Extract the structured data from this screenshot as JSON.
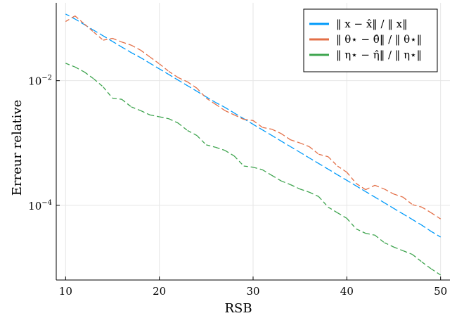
{
  "chart_data": {
    "type": "line",
    "title": "",
    "xlabel": "RSB",
    "ylabel": "Erreur relative",
    "xlim": [
      9,
      51
    ],
    "ylim_log10": [
      -5.2,
      -0.75
    ],
    "yscale": "log",
    "grid": true,
    "legend_position": "top-right",
    "x_ticks": [
      10,
      20,
      30,
      40,
      50
    ],
    "x_tick_labels": [
      "10",
      "20",
      "30",
      "40",
      "50"
    ],
    "y_ticks_log10": [
      -2,
      -4
    ],
    "y_tick_labels": [
      {
        "base": "10",
        "exp": "−2"
      },
      {
        "base": "10",
        "exp": "−4"
      }
    ],
    "x": [
      10,
      11,
      12,
      13,
      14,
      15,
      16,
      17,
      18,
      19,
      20,
      21,
      22,
      23,
      24,
      25,
      26,
      27,
      28,
      29,
      30,
      31,
      32,
      33,
      34,
      35,
      36,
      37,
      38,
      39,
      40,
      41,
      42,
      43,
      44,
      45,
      46,
      47,
      48,
      49,
      50
    ],
    "series": [
      {
        "name": "‖ x − x̂‖ / ‖ x‖",
        "color": "#009AFA",
        "dash": true,
        "values_log10": [
          -0.93,
          -1.01,
          -1.1,
          -1.19,
          -1.28,
          -1.37,
          -1.46,
          -1.55,
          -1.63,
          -1.72,
          -1.81,
          -1.9,
          -1.99,
          -2.08,
          -2.17,
          -2.26,
          -2.35,
          -2.43,
          -2.52,
          -2.61,
          -2.7,
          -2.79,
          -2.88,
          -2.97,
          -3.06,
          -3.15,
          -3.24,
          -3.33,
          -3.42,
          -3.51,
          -3.6,
          -3.69,
          -3.78,
          -3.87,
          -3.96,
          -4.05,
          -4.14,
          -4.23,
          -4.32,
          -4.42,
          -4.51
        ]
      },
      {
        "name": "‖ θ⋆ − θ̂‖ / ‖ θ⋆‖",
        "color": "#E36F47",
        "dash": true,
        "values_log10": [
          -1.05,
          -0.96,
          -1.09,
          -1.22,
          -1.35,
          -1.32,
          -1.38,
          -1.43,
          -1.51,
          -1.62,
          -1.73,
          -1.85,
          -1.95,
          -2.02,
          -2.12,
          -2.28,
          -2.38,
          -2.48,
          -2.55,
          -2.62,
          -2.64,
          -2.75,
          -2.78,
          -2.85,
          -2.95,
          -3.0,
          -3.06,
          -3.18,
          -3.22,
          -3.37,
          -3.47,
          -3.65,
          -3.75,
          -3.68,
          -3.74,
          -3.82,
          -3.87,
          -3.99,
          -4.03,
          -4.12,
          -4.22
        ]
      },
      {
        "name": "‖ η⋆ − η̂‖ / ‖ η⋆‖",
        "color": "#3EA44E",
        "dash": true,
        "values_log10": [
          -1.72,
          -1.78,
          -1.86,
          -1.97,
          -2.1,
          -2.28,
          -2.3,
          -2.42,
          -2.48,
          -2.55,
          -2.58,
          -2.61,
          -2.68,
          -2.8,
          -2.88,
          -3.03,
          -3.07,
          -3.12,
          -3.21,
          -3.37,
          -3.39,
          -3.43,
          -3.52,
          -3.61,
          -3.67,
          -3.74,
          -3.79,
          -3.86,
          -4.03,
          -4.12,
          -4.21,
          -4.38,
          -4.45,
          -4.48,
          -4.6,
          -4.67,
          -4.73,
          -4.79,
          -4.91,
          -5.02,
          -5.12
        ]
      }
    ]
  }
}
